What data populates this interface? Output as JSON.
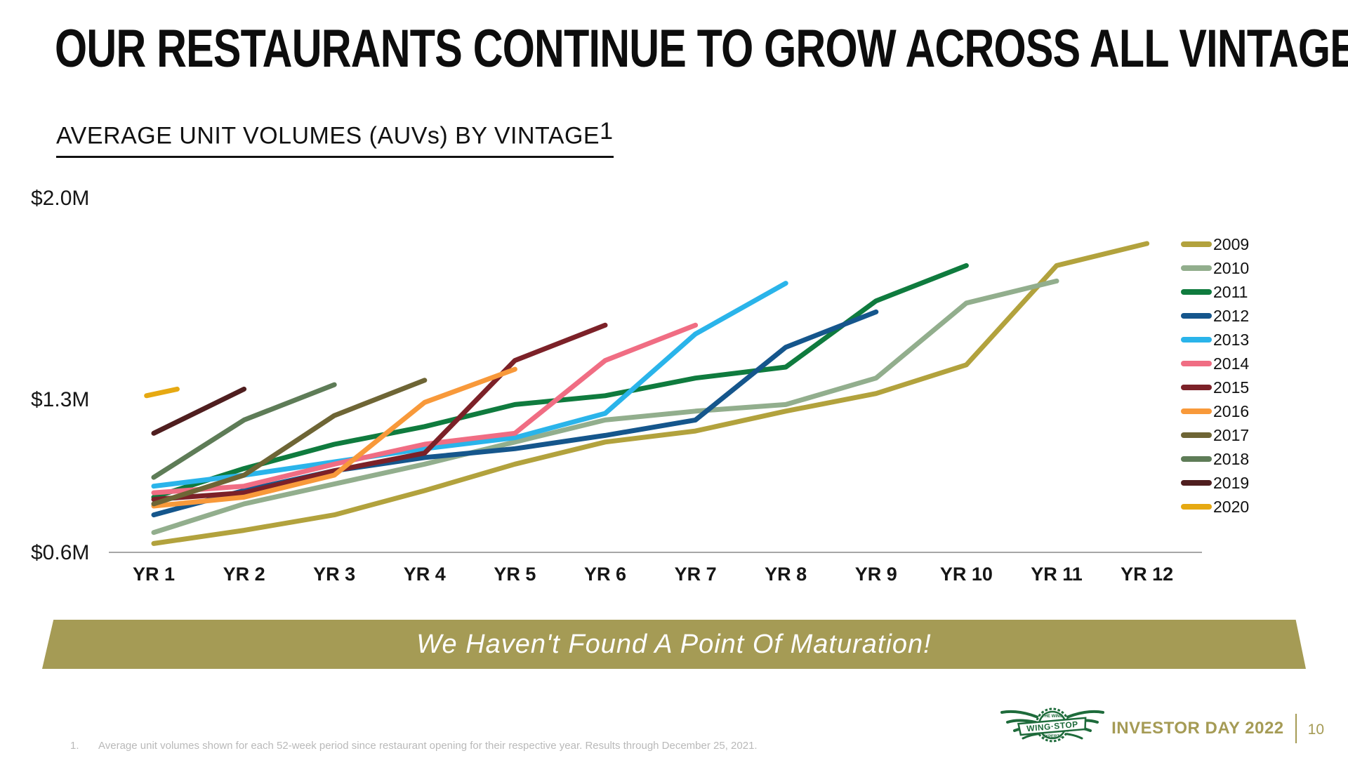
{
  "slide": {
    "title": "OUR RESTAURANTS CONTINUE TO GROW ACROSS ALL VINTAGES",
    "subtitle": "AVERAGE UNIT VOLUMES (AUVs) BY VINTAGE",
    "subtitle_superscript": "1",
    "banner_text": "We Haven't Found A Point Of Maturation!",
    "footnote_number": "1.",
    "footnote_text": "Average unit volumes shown for each 52-week period since restaurant opening for their respective year. Results through December 25, 2021.",
    "footer": {
      "logo_brand": "WING·STOP",
      "logo_top": "THE WING",
      "logo_bottom": "EXPERTS",
      "event": "INVESTOR DAY 2022",
      "page_number": "10"
    },
    "colors": {
      "banner_olive": "#a59b55",
      "logo_green": "#1e6b3b",
      "axis_gray": "#a6a6a6",
      "footnote_gray": "#b9b9b9"
    }
  },
  "chart_data": {
    "type": "line",
    "title": "AVERAGE UNIT VOLUMES (AUVs) BY VINTAGE",
    "unit": "USD millions",
    "x_categories": [
      "YR 1",
      "YR 2",
      "YR 3",
      "YR 4",
      "YR 5",
      "YR 6",
      "YR 7",
      "YR 8",
      "YR 9",
      "YR 10",
      "YR 11",
      "YR 12"
    ],
    "y_ticks": [
      "$2.0M",
      "$1.3M",
      "$0.6M"
    ],
    "ylim": [
      0.6,
      2.0
    ],
    "grid": false,
    "legend_position": "right",
    "series": [
      {
        "name": "2009",
        "color": "#b2a23d",
        "values": [
          0.64,
          0.7,
          0.77,
          0.88,
          1.0,
          1.1,
          1.15,
          1.24,
          1.32,
          1.45,
          1.9,
          2.0
        ]
      },
      {
        "name": "2010",
        "color": "#92ae8d",
        "values": [
          0.69,
          0.82,
          0.91,
          1.0,
          1.1,
          1.2,
          1.24,
          1.27,
          1.39,
          1.73,
          1.83
        ]
      },
      {
        "name": "2011",
        "color": "#0f7b3e",
        "values": [
          0.85,
          0.98,
          1.09,
          1.17,
          1.27,
          1.31,
          1.39,
          1.44,
          1.74,
          1.9
        ]
      },
      {
        "name": "2012",
        "color": "#15568c",
        "values": [
          0.77,
          0.88,
          0.97,
          1.03,
          1.07,
          1.13,
          1.2,
          1.53,
          1.69
        ]
      },
      {
        "name": "2013",
        "color": "#2ab4ea",
        "values": [
          0.9,
          0.95,
          1.01,
          1.07,
          1.12,
          1.23,
          1.59,
          1.82
        ]
      },
      {
        "name": "2014",
        "color": "#f06d83",
        "values": [
          0.87,
          0.9,
          1.0,
          1.09,
          1.14,
          1.47,
          1.63
        ]
      },
      {
        "name": "2015",
        "color": "#7c2128",
        "values": [
          0.84,
          0.87,
          0.97,
          1.05,
          1.47,
          1.63
        ]
      },
      {
        "name": "2016",
        "color": "#f8993a",
        "values": [
          0.81,
          0.85,
          0.95,
          1.28,
          1.43
        ]
      },
      {
        "name": "2017",
        "color": "#6e6535",
        "values": [
          0.82,
          0.95,
          1.22,
          1.38
        ]
      },
      {
        "name": "2018",
        "color": "#5e7c57",
        "values": [
          0.94,
          1.2,
          1.36
        ]
      },
      {
        "name": "2019",
        "color": "#4f1e1f",
        "values": [
          1.14,
          1.34
        ]
      },
      {
        "name": "2020",
        "color": "#e6a912",
        "values": [
          1.31,
          1.34
        ],
        "x": [
          0.92,
          1.26
        ]
      }
    ]
  }
}
